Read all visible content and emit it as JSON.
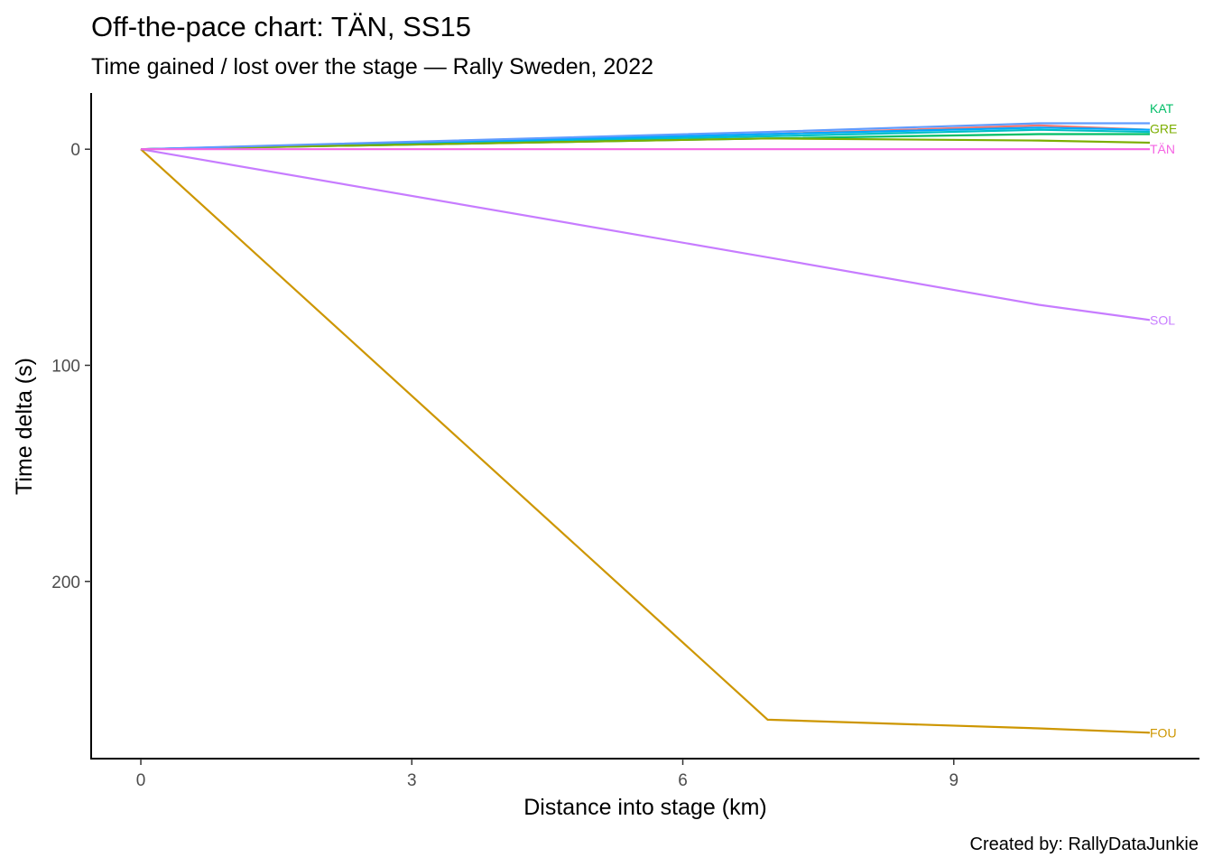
{
  "chart_data": {
    "type": "line",
    "title": "Off-the-pace chart: TÄN, SS15",
    "subtitle": "Time gained / lost over the stage — Rally Sweden, 2022",
    "xlabel": "Distance into stage (km)",
    "ylabel": "Time delta (s)",
    "caption": "Created by: RallyDataJunkie",
    "xlim": [
      -0.55,
      11.72
    ],
    "ylim": [
      282,
      -26
    ],
    "y_reversed": true,
    "x_ticks": [
      0,
      3,
      6,
      9
    ],
    "y_ticks": [
      0,
      100,
      200
    ],
    "grid": false,
    "legend": "none",
    "series": [
      {
        "color": "#C77CFF",
        "x": [
          0,
          6.94,
          9.94,
          11.17
        ],
        "y": [
          0,
          50,
          72,
          79
        ]
      },
      {
        "color": "#CD9600",
        "x": [
          0,
          6.94,
          9.94,
          11.17
        ],
        "y": [
          0,
          264,
          268,
          270
        ]
      },
      {
        "color": "#F8766D",
        "x": [
          0,
          6.94,
          9.94,
          11.17
        ],
        "y": [
          0,
          -7,
          -11,
          -9
        ]
      },
      {
        "color": "#00BFC4",
        "x": [
          0,
          6.94,
          9.94,
          11.17
        ],
        "y": [
          0,
          -6,
          -9,
          -8
        ]
      },
      {
        "color": "#00A9FF",
        "x": [
          0,
          6.94,
          9.94,
          11.17
        ],
        "y": [
          0,
          -7,
          -10,
          -9
        ]
      },
      {
        "color": "#00BE67",
        "x": [
          0,
          6.94,
          9.94,
          11.17
        ],
        "y": [
          0,
          -5,
          -7,
          -7
        ]
      },
      {
        "color": "#7CAE00",
        "x": [
          0,
          6.94,
          9.94,
          11.17
        ],
        "y": [
          0,
          -5,
          -4,
          -3
        ]
      },
      {
        "color": "#619CFF",
        "x": [
          0,
          6.94,
          9.94,
          11.17
        ],
        "y": [
          0,
          -8,
          -12,
          -12
        ]
      },
      {
        "color": "#F564E3",
        "x": [
          0,
          6.94,
          9.94,
          11.17
        ],
        "y": [
          0,
          0,
          0,
          0
        ]
      }
    ],
    "end_labels": [
      {
        "text": "KAT",
        "color": "#00BE67",
        "y": -19
      },
      {
        "text": "GRE",
        "color": "#7CAE00",
        "y": -9.5
      },
      {
        "text": "TÄN",
        "color": "#F564E3",
        "y": 0
      },
      {
        "text": "SOL",
        "color": "#C77CFF",
        "y": 79
      },
      {
        "text": "FOU",
        "color": "#CD9600",
        "y": 270
      }
    ]
  }
}
